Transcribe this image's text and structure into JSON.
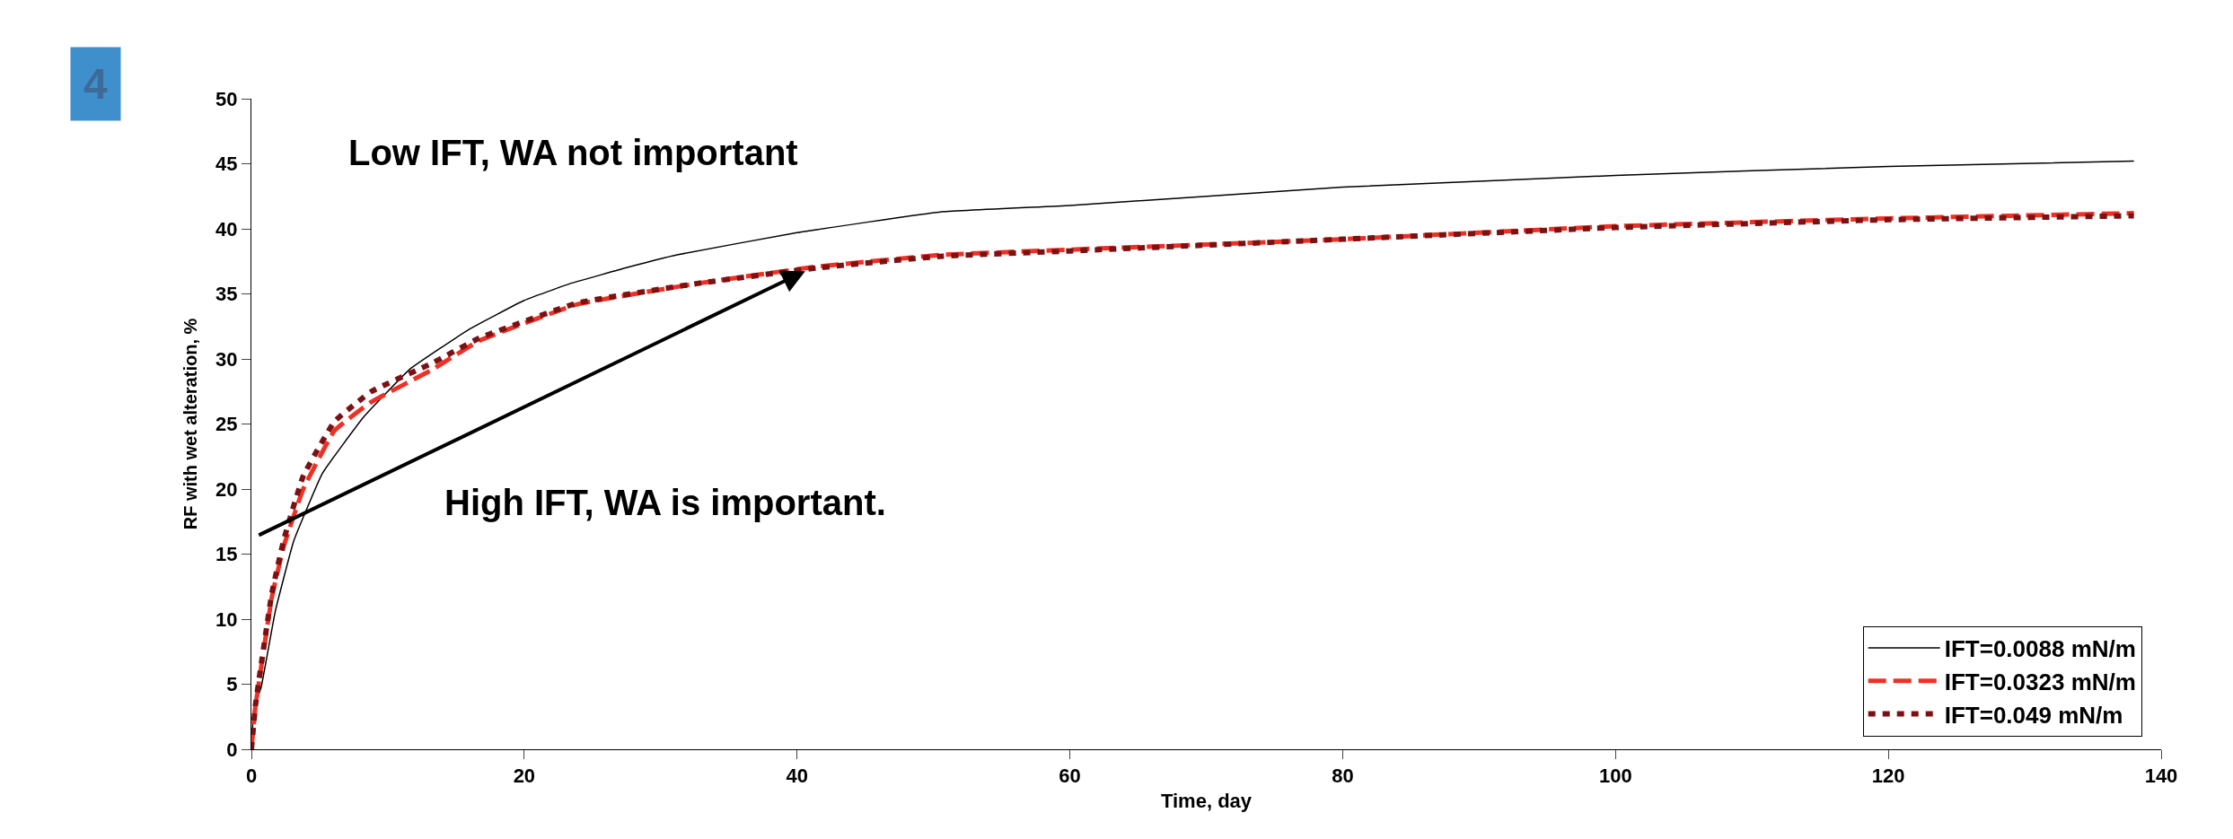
{
  "chart_data": {
    "type": "line",
    "xlabel": "Time, day",
    "ylabel": "RF with wet alteration, %",
    "xlim": [
      0,
      140
    ],
    "xticks": [
      0,
      20,
      40,
      60,
      80,
      100,
      120,
      140
    ],
    "ylim": [
      0,
      50
    ],
    "yticks": [
      0,
      5,
      10,
      15,
      20,
      25,
      30,
      35,
      40,
      45,
      50
    ],
    "legend": "bottom right",
    "annotations": [
      "4",
      "Low IFT, WA not important",
      "High IFT, WA is important."
    ],
    "series": [
      {
        "name": "IFT=0.0088 mN/m",
        "color": "#000000",
        "line_style": "solid",
        "x": [
          0,
          0.2,
          0.7,
          1.75,
          3.1,
          5.2,
          8.2,
          11.6,
          16,
          20,
          23.4,
          27.8,
          31.2,
          40,
          50.5,
          60,
          80,
          100,
          120,
          138
        ],
        "values": [
          0,
          3.3,
          4.7,
          10.6,
          16,
          21.2,
          25.5,
          29.2,
          32.3,
          34.5,
          35.8,
          37.1,
          38,
          39.7,
          41.3,
          41.8,
          43.2,
          44.1,
          44.8,
          45.2
        ]
      },
      {
        "name": "IFT=0.0323 mN/m",
        "color": "#ee3124",
        "line_style": "dashed",
        "x": [
          0,
          0.3,
          0.8,
          1.5,
          2.4,
          3.8,
          6.1,
          8.8,
          13.3,
          16.7,
          23.9,
          32.7,
          41.5,
          50.7,
          60,
          80,
          100,
          120,
          138
        ],
        "values": [
          0,
          3.3,
          6.9,
          11.7,
          15.7,
          20,
          24.5,
          26.7,
          29.2,
          31.4,
          34.2,
          35.8,
          37.1,
          38,
          38.4,
          39.2,
          40.2,
          40.8,
          41.2
        ]
      },
      {
        "name": "IFT=0.049 mN/m",
        "color": "#7b1113",
        "line_style": "dotted",
        "x": [
          0,
          0.3,
          0.8,
          1.5,
          2.4,
          3.8,
          6.1,
          8.8,
          13.3,
          16.7,
          23.9,
          32.7,
          41.5,
          50.7,
          60,
          80,
          100,
          120,
          138
        ],
        "values": [
          0,
          3.4,
          7.1,
          12,
          16.2,
          21,
          25.2,
          27.5,
          29.7,
          31.6,
          34.3,
          35.8,
          37,
          37.9,
          38.3,
          39.2,
          40.1,
          40.7,
          41
        ]
      }
    ]
  }
}
